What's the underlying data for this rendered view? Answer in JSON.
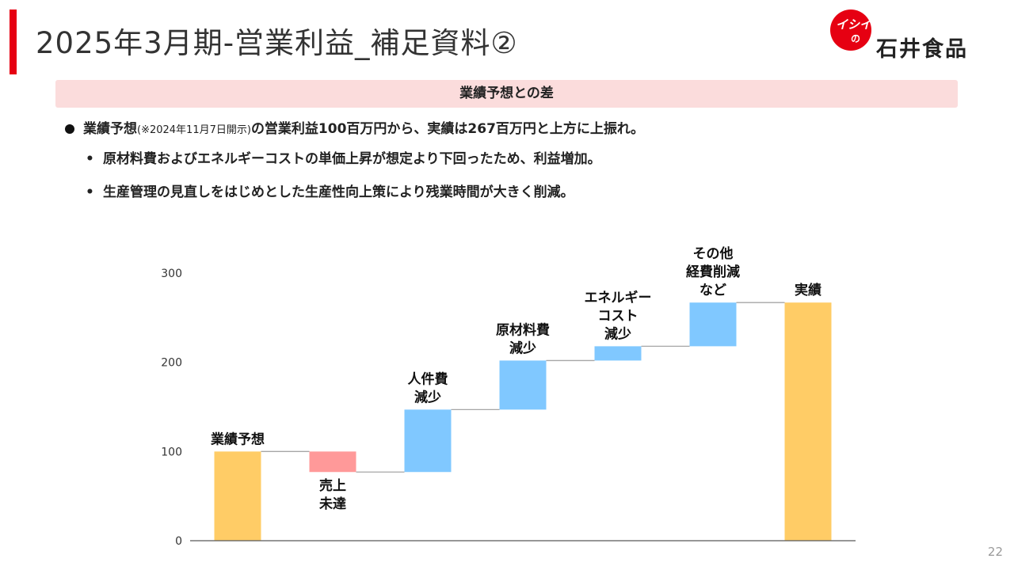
{
  "header": {
    "title": "2025年3月期-営業利益_補足資料②",
    "logo_mark": "イシイ",
    "logo_mark_sub": "の",
    "logo_name": "石井食品"
  },
  "section": {
    "title": "業績予想との差"
  },
  "bullets": {
    "main": {
      "lead": "業績予想",
      "note": "(※2024年11月7日開示)",
      "rest": "の営業利益100百万円から、実績は267百万円と上方に上振れ。"
    },
    "sub": [
      {
        "marker": "•",
        "text": "原材料費およびエネルギーコストの単価上昇が想定より下回ったため、利益増加。"
      },
      {
        "marker": "•",
        "text": "生産管理の見直しをはじめとした生産性向上策により残業時間が大きく削減。"
      }
    ]
  },
  "chart_data": {
    "type": "bar",
    "subtype": "waterfall",
    "categories": [
      "業績予想",
      "売上未達",
      "人件費減少",
      "原材料費減少",
      "エネルギーコスト減少",
      "その他経費削減など",
      "実績"
    ],
    "labels": [
      [
        "業績予想"
      ],
      [
        "売上",
        "未達"
      ],
      [
        "人件費",
        "減少"
      ],
      [
        "原材料費",
        "減少"
      ],
      [
        "エネルギー",
        "コスト",
        "減少"
      ],
      [
        "その他",
        "経費削減",
        "など"
      ],
      [
        "実績"
      ]
    ],
    "bars": [
      {
        "kind": "total",
        "start": 0,
        "end": 100
      },
      {
        "kind": "decrease",
        "start": 100,
        "end": 77
      },
      {
        "kind": "increase",
        "start": 77,
        "end": 147
      },
      {
        "kind": "increase",
        "start": 147,
        "end": 202
      },
      {
        "kind": "increase",
        "start": 202,
        "end": 218
      },
      {
        "kind": "increase",
        "start": 218,
        "end": 267
      },
      {
        "kind": "total",
        "start": 0,
        "end": 267
      }
    ],
    "y_ticks": [
      0,
      100,
      200,
      300
    ],
    "ylim": [
      0,
      300
    ],
    "grid": false,
    "colors": {
      "total": "#ffcc66",
      "decrease": "#ff9999",
      "increase": "#80c8ff",
      "connector": "#a6a6a6",
      "axis": "#595959"
    }
  },
  "footer": {
    "page_number": "22"
  }
}
